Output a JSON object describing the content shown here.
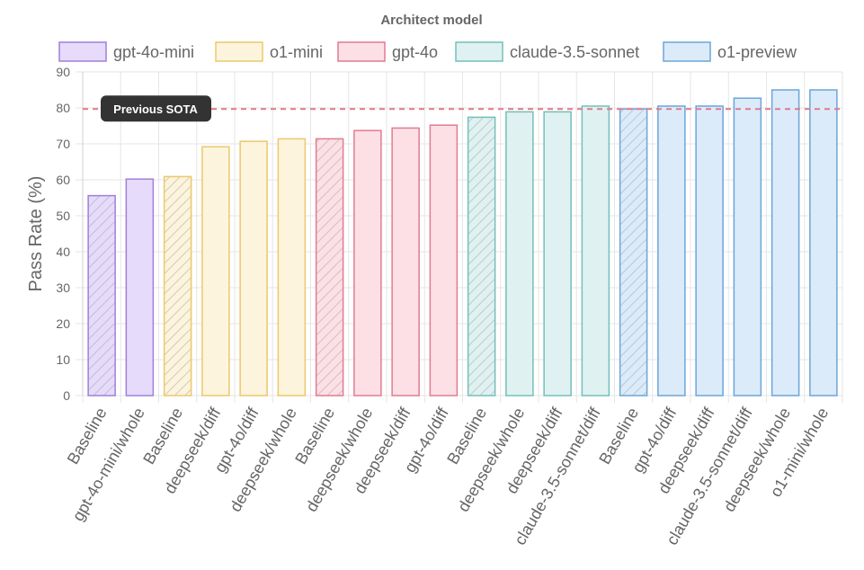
{
  "chart_data": {
    "type": "bar",
    "title": "Architect model",
    "xlabel": "",
    "ylabel": "Pass Rate (%)",
    "ylim": [
      0,
      90
    ],
    "yticks": [
      0,
      10,
      20,
      30,
      40,
      50,
      60,
      70,
      80,
      90
    ],
    "grid": true,
    "legend_position": "top",
    "series": [
      {
        "name": "gpt-4o-mini",
        "fill": "#e6dbfb",
        "stroke": "#a07fd9"
      },
      {
        "name": "o1-mini",
        "fill": "#fcf4dc",
        "stroke": "#ecc86a"
      },
      {
        "name": "gpt-4o",
        "fill": "#fde0e5",
        "stroke": "#df7c91"
      },
      {
        "name": "claude-3.5-sonnet",
        "fill": "#dff2f1",
        "stroke": "#73bfbb"
      },
      {
        "name": "o1-preview",
        "fill": "#dcebfa",
        "stroke": "#6aa6d8"
      }
    ],
    "bars": [
      {
        "label": "Baseline",
        "series": "gpt-4o-mini",
        "value": 55.6,
        "baseline": true
      },
      {
        "label": "gpt-4o-mini/whole",
        "series": "gpt-4o-mini",
        "value": 60.2,
        "baseline": false
      },
      {
        "label": "Baseline",
        "series": "o1-mini",
        "value": 60.9,
        "baseline": true
      },
      {
        "label": "deepseek/diff",
        "series": "o1-mini",
        "value": 69.2,
        "baseline": false
      },
      {
        "label": "gpt-4o/diff",
        "series": "o1-mini",
        "value": 70.7,
        "baseline": false
      },
      {
        "label": "deepseek/whole",
        "series": "o1-mini",
        "value": 71.4,
        "baseline": false
      },
      {
        "label": "Baseline",
        "series": "gpt-4o",
        "value": 71.4,
        "baseline": true
      },
      {
        "label": "deepseek/whole",
        "series": "gpt-4o",
        "value": 73.7,
        "baseline": false
      },
      {
        "label": "deepseek/diff",
        "series": "gpt-4o",
        "value": 74.4,
        "baseline": false
      },
      {
        "label": "gpt-4o/diff",
        "series": "gpt-4o",
        "value": 75.2,
        "baseline": false
      },
      {
        "label": "Baseline",
        "series": "claude-3.5-sonnet",
        "value": 77.4,
        "baseline": true
      },
      {
        "label": "deepseek/whole",
        "series": "claude-3.5-sonnet",
        "value": 78.9,
        "baseline": false
      },
      {
        "label": "deepseek/diff",
        "series": "claude-3.5-sonnet",
        "value": 78.9,
        "baseline": false
      },
      {
        "label": "claude-3.5-sonnet/diff",
        "series": "claude-3.5-sonnet",
        "value": 80.5,
        "baseline": false
      },
      {
        "label": "Baseline",
        "series": "o1-preview",
        "value": 79.7,
        "baseline": true
      },
      {
        "label": "gpt-4o/diff",
        "series": "o1-preview",
        "value": 80.5,
        "baseline": false
      },
      {
        "label": "deepseek/diff",
        "series": "o1-preview",
        "value": 80.5,
        "baseline": false
      },
      {
        "label": "claude-3.5-sonnet/diff",
        "series": "o1-preview",
        "value": 82.7,
        "baseline": false
      },
      {
        "label": "deepseek/whole",
        "series": "o1-preview",
        "value": 85.0,
        "baseline": false
      },
      {
        "label": "o1-mini/whole",
        "series": "o1-preview",
        "value": 85.0,
        "baseline": false
      }
    ],
    "annotations": [
      {
        "type": "hline",
        "value": 79.7,
        "label": "Previous SOTA",
        "color": "#e07a8c"
      }
    ]
  }
}
